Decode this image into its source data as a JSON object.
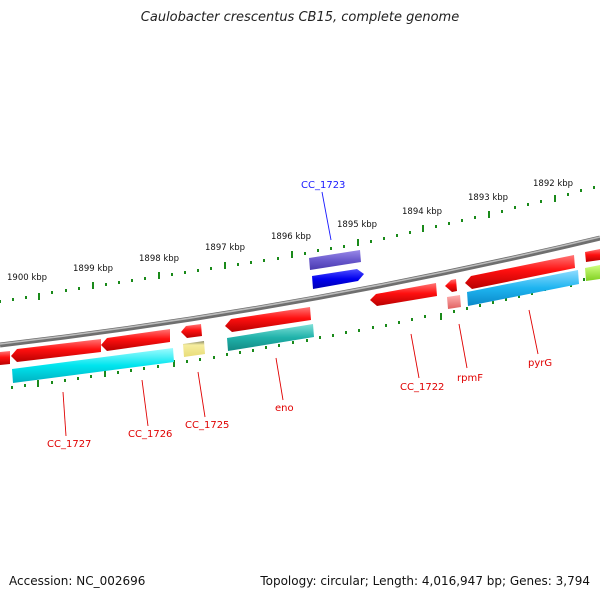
{
  "title": "Caulobacter crescentus CB15, complete genome",
  "footer": {
    "accession_label": "Accession: ",
    "accession": "NC_002696",
    "topology_label": "Topology: ",
    "topology": "circular",
    "length_label": "Length: ",
    "length": "4,016,947 bp",
    "genes_label": "Genes: ",
    "genes": "3,794"
  },
  "scale_labels": [
    "1900 kbp",
    "1899 kbp",
    "1898 kbp",
    "1897 kbp",
    "1896 kbp",
    "1895 kbp",
    "1894 kbp",
    "1893 kbp",
    "1892 kbp"
  ],
  "gene_labels": [
    {
      "text": "CC_1723",
      "color": "#1a1aff"
    },
    {
      "text": "CC_1727",
      "color": "#e00000"
    },
    {
      "text": "CC_1726",
      "color": "#e00000"
    },
    {
      "text": "CC_1725",
      "color": "#e00000"
    },
    {
      "text": "eno",
      "color": "#e00000"
    },
    {
      "text": "CC_1722",
      "color": "#e00000"
    },
    {
      "text": "rpmF",
      "color": "#e00000"
    },
    {
      "text": "pyrG",
      "color": "#e00000"
    }
  ],
  "colors": {
    "cds": "#ff1a1a",
    "gene_blue": "#0000ee",
    "gene_purple": "#6a5acd",
    "cyan": "#00e5ee",
    "teal": "#20b2aa",
    "sky": "#1eb4f0",
    "khaki": "#f0e68c",
    "pink": "#f08080",
    "lime": "#99ee33",
    "backbone": "#808080",
    "ticks": "#1a8a1a"
  }
}
